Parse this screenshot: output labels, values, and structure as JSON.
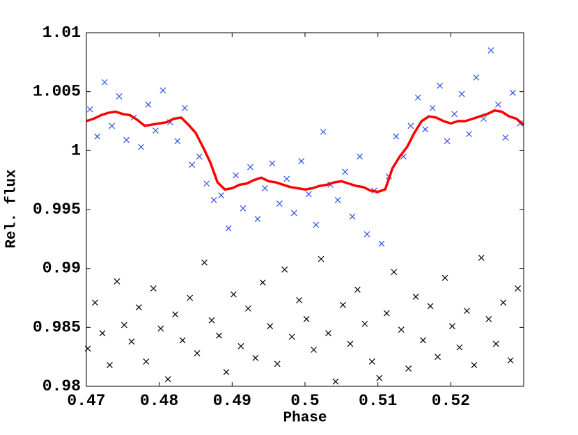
{
  "chart_data": {
    "type": "scatter",
    "xlabel": "Phase",
    "ylabel": "Rel. flux",
    "xlim": [
      0.47,
      0.53
    ],
    "ylim": [
      0.98,
      1.01
    ],
    "xticks": [
      0.47,
      0.48,
      0.49,
      0.5,
      0.51,
      0.52
    ],
    "yticks": [
      0.98,
      0.985,
      0.99,
      0.995,
      1,
      1.005,
      1.01
    ],
    "series": [
      {
        "kind": "scatter",
        "marker": "x",
        "color": "#2f52e0",
        "x": [
          0.4705,
          0.4715,
          0.4725,
          0.4735,
          0.4745,
          0.4755,
          0.4765,
          0.4775,
          0.4785,
          0.4795,
          0.4805,
          0.4815,
          0.4825,
          0.4835,
          0.4845,
          0.4855,
          0.4865,
          0.4875,
          0.4885,
          0.4895,
          0.4905,
          0.4915,
          0.4925,
          0.4935,
          0.4945,
          0.4955,
          0.4965,
          0.4975,
          0.4985,
          0.4995,
          0.5005,
          0.5015,
          0.5025,
          0.5035,
          0.5045,
          0.5055,
          0.5065,
          0.5075,
          0.5085,
          0.5095,
          0.5105,
          0.5115,
          0.5125,
          0.5135,
          0.5145,
          0.5155,
          0.5165,
          0.5175,
          0.5185,
          0.5195,
          0.5205,
          0.5215,
          0.5225,
          0.5235,
          0.5245,
          0.5255,
          0.5265,
          0.5275,
          0.5285,
          0.5295
        ],
        "values": [
          1.0035,
          1.0012,
          1.0058,
          1.0021,
          1.0046,
          1.0009,
          1.0028,
          1.0003,
          1.0039,
          1.0017,
          1.0051,
          1.0024,
          1.0008,
          1.0036,
          0.9988,
          0.9995,
          0.9972,
          0.9958,
          0.9962,
          0.9934,
          0.9979,
          0.9951,
          0.9986,
          0.9942,
          0.9968,
          0.9989,
          0.9955,
          0.9976,
          0.9947,
          0.9991,
          0.9963,
          0.9937,
          1.0016,
          0.9971,
          0.9958,
          0.9982,
          0.9944,
          0.9995,
          0.9929,
          0.9966,
          0.9921,
          0.9978,
          1.0012,
          0.9995,
          1.0021,
          1.0045,
          1.0018,
          1.0036,
          1.0055,
          1.0008,
          1.0031,
          1.0048,
          1.0014,
          1.0062,
          1.0027,
          1.0085,
          1.0039,
          1.0011,
          1.0049,
          1.0023
        ]
      },
      {
        "kind": "scatter",
        "marker": "x",
        "color": "#000000",
        "x": [
          0.4702,
          0.4712,
          0.4722,
          0.4732,
          0.4742,
          0.4752,
          0.4762,
          0.4772,
          0.4782,
          0.4792,
          0.4802,
          0.4812,
          0.4822,
          0.4832,
          0.4842,
          0.4852,
          0.4862,
          0.4872,
          0.4882,
          0.4892,
          0.4902,
          0.4912,
          0.4922,
          0.4932,
          0.4942,
          0.4952,
          0.4962,
          0.4972,
          0.4982,
          0.4992,
          0.5002,
          0.5012,
          0.5022,
          0.5032,
          0.5042,
          0.5052,
          0.5062,
          0.5072,
          0.5082,
          0.5092,
          0.5102,
          0.5112,
          0.5122,
          0.5132,
          0.5142,
          0.5152,
          0.5162,
          0.5172,
          0.5182,
          0.5192,
          0.5202,
          0.5212,
          0.5222,
          0.5232,
          0.5242,
          0.5252,
          0.5262,
          0.5272,
          0.5282,
          0.5292
        ],
        "values": [
          0.9832,
          0.9871,
          0.9845,
          0.9818,
          0.9889,
          0.9852,
          0.9838,
          0.9867,
          0.9821,
          0.9883,
          0.9849,
          0.9806,
          0.9861,
          0.9839,
          0.9875,
          0.9828,
          0.9905,
          0.9856,
          0.9843,
          0.9812,
          0.9878,
          0.9834,
          0.9866,
          0.9824,
          0.9888,
          0.9851,
          0.9819,
          0.9899,
          0.9842,
          0.9873,
          0.9857,
          0.9831,
          0.9908,
          0.9845,
          0.9804,
          0.9869,
          0.9836,
          0.9882,
          0.9853,
          0.9821,
          0.9807,
          0.9862,
          0.9897,
          0.9848,
          0.9815,
          0.9876,
          0.9839,
          0.9868,
          0.9825,
          0.9892,
          0.9851,
          0.9833,
          0.9864,
          0.9818,
          0.9909,
          0.9857,
          0.9836,
          0.9871,
          0.9822,
          0.9883
        ]
      },
      {
        "kind": "line",
        "color": "#ff0000",
        "x": [
          0.47,
          0.471,
          0.472,
          0.473,
          0.474,
          0.475,
          0.476,
          0.477,
          0.478,
          0.479,
          0.48,
          0.481,
          0.482,
          0.483,
          0.484,
          0.485,
          0.486,
          0.487,
          0.488,
          0.489,
          0.49,
          0.491,
          0.492,
          0.493,
          0.494,
          0.495,
          0.496,
          0.497,
          0.498,
          0.499,
          0.5,
          0.501,
          0.502,
          0.503,
          0.504,
          0.505,
          0.506,
          0.507,
          0.508,
          0.509,
          0.51,
          0.511,
          0.512,
          0.513,
          0.514,
          0.515,
          0.516,
          0.517,
          0.518,
          0.519,
          0.52,
          0.521,
          0.522,
          0.523,
          0.524,
          0.525,
          0.526,
          0.527,
          0.528,
          0.529,
          0.53
        ],
        "values": [
          1.0025,
          1.0027,
          1.003,
          1.0032,
          1.0033,
          1.0031,
          1.003,
          1.0026,
          1.0021,
          1.0022,
          1.0023,
          1.0024,
          1.0027,
          1.0028,
          1.0022,
          1.0015,
          1.0003,
          0.999,
          0.9973,
          0.9967,
          0.9968,
          0.9971,
          0.9972,
          0.9975,
          0.9977,
          0.9974,
          0.9973,
          0.9971,
          0.9969,
          0.9968,
          0.9967,
          0.9968,
          0.997,
          0.9971,
          0.9973,
          0.9974,
          0.9972,
          0.997,
          0.9969,
          0.9966,
          0.9965,
          0.9967,
          0.9985,
          0.9995,
          1.0003,
          1.0015,
          1.0025,
          1.0029,
          1.0028,
          1.0025,
          1.0023,
          1.0025,
          1.0025,
          1.0027,
          1.0029,
          1.0031,
          1.0034,
          1.0033,
          1.0029,
          1.0027,
          1.0022
        ]
      }
    ]
  }
}
